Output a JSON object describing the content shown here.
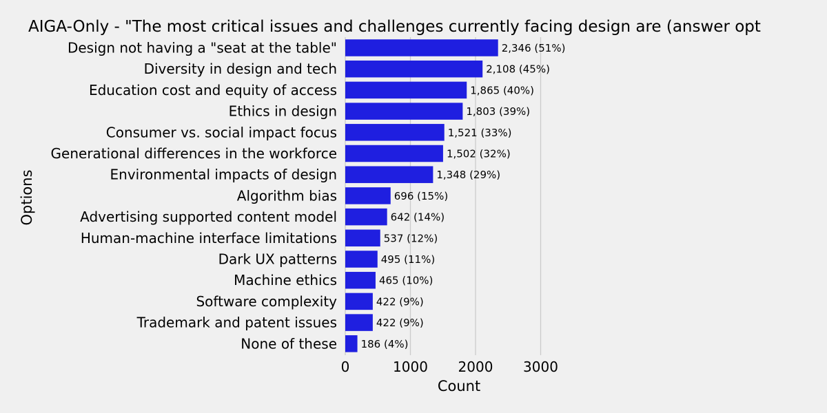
{
  "chart_data": {
    "type": "bar",
    "orientation": "horizontal",
    "title": "AIGA-Only - \"The most critical issues and challenges currently facing design are (answer opt",
    "xlabel": "Count",
    "ylabel": "Options",
    "xlim": [
      0,
      3000
    ],
    "xticks": [
      0,
      1000,
      2000,
      3000
    ],
    "xtick_labels": [
      "0",
      "1000",
      "2000",
      "3000"
    ],
    "grid": "vertical",
    "bar_color": "#1f1fe0",
    "background_color": "#f0f0f0",
    "grid_color": "#cbcbcb",
    "categories": [
      "Design not having a \"seat at the table\"",
      "Diversity in design and tech",
      "Education cost and equity of access",
      "Ethics in design",
      "Consumer vs. social impact focus",
      "Generational differences in the workforce",
      "Environmental impacts of design",
      "Algorithm bias",
      "Advertising supported content model",
      "Human-machine interface limitations",
      "Dark UX patterns",
      "Machine ethics",
      "Software complexity",
      "Trademark and patent issues",
      "None of these"
    ],
    "values": [
      2346,
      2108,
      1865,
      1803,
      1521,
      1502,
      1348,
      696,
      642,
      537,
      495,
      465,
      422,
      422,
      186
    ],
    "data_labels": [
      "2,346 (51%)",
      "2,108 (45%)",
      "1,865 (40%)",
      "1,803 (39%)",
      "1,521 (33%)",
      "1,502 (32%)",
      "1,348 (29%)",
      "696 (15%)",
      "642 (14%)",
      "537 (12%)",
      "495 (11%)",
      "465 (10%)",
      "422 (9%)",
      "422 (9%)",
      "186 (4%)"
    ]
  }
}
